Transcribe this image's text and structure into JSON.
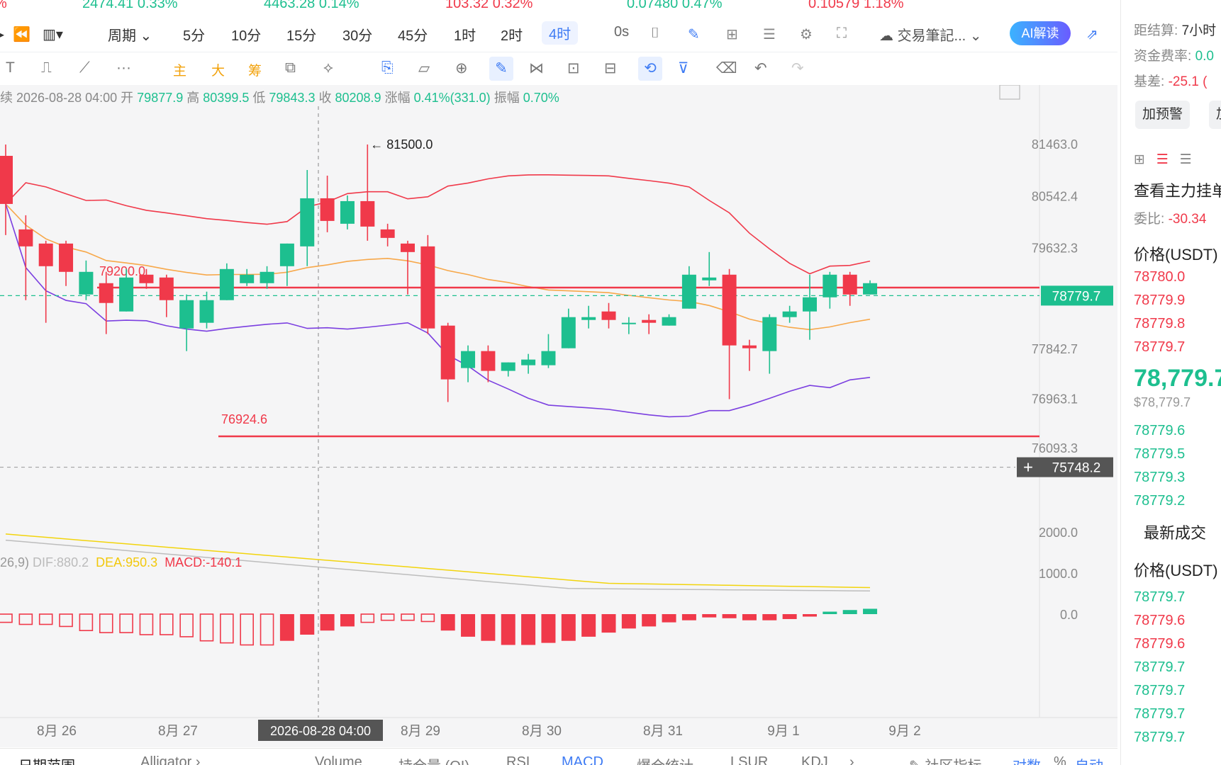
{
  "ticker": [
    {
      "price": "2474.41",
      "change": "0.33%",
      "dir": "up"
    },
    {
      "price": "4463.28",
      "change": "0.14%",
      "dir": "up"
    },
    {
      "price": "103.32",
      "change": "0.32%",
      "dir": "down"
    },
    {
      "price": "0.07480",
      "change": "0.47%",
      "dir": "up"
    },
    {
      "price": "0.10579",
      "change": "1.18%",
      "dir": "down"
    }
  ],
  "toolbar": {
    "period_label": "周期",
    "intervals": [
      "5分",
      "10分",
      "15分",
      "30分",
      "45分",
      "1时",
      "2时",
      "4时"
    ],
    "active_interval": "4时",
    "timer": "0s",
    "notes_label": "交易筆記...",
    "ai_label": "AI解读"
  },
  "toolbar2": {
    "main_label": "主",
    "big_label": "大",
    "chip_label": "筹"
  },
  "ohlc": {
    "prefix": "续",
    "date": "2026-08-28 04:00",
    "open_label": "开",
    "open": "79877.9",
    "high_label": "高",
    "high": "80399.5",
    "low_label": "低",
    "low": "79843.3",
    "close_label": "收",
    "close": "80208.9",
    "change_label": "涨幅",
    "change": "0.41%(331.0)",
    "amp_label": "振幅",
    "amp": "0.70%"
  },
  "chart_data": {
    "type": "candlestick",
    "price_axis": [
      "81463.0",
      "80542.4",
      "79632.3",
      "78779.7",
      "77842.7",
      "76963.1",
      "76093.3"
    ],
    "current_price": "78779.7",
    "crosshair_price": "75748.2",
    "max_annotation": "81500.0",
    "resistance": "79200.0",
    "support": "76924.6",
    "macd_axis": [
      "2000.0",
      "1000.0",
      "0.0"
    ],
    "x_labels": [
      "8月 26",
      "8月 27",
      "8月 29",
      "8月 30",
      "8月 31",
      "9月 1",
      "9月 2"
    ],
    "crosshair_time": "2026-08-28 04:00",
    "candles": [
      [
        81250,
        80400,
        81450,
        79850
      ],
      [
        79950,
        79650,
        80200,
        78700
      ],
      [
        79700,
        79300,
        79750,
        78300
      ],
      [
        79700,
        79200,
        79750,
        78950
      ],
      [
        78800,
        79200,
        79400,
        78700
      ],
      [
        79000,
        78650,
        79200,
        78100
      ],
      [
        78500,
        79100,
        79250,
        78500
      ],
      [
        79150,
        79000,
        79250,
        78900
      ],
      [
        79100,
        78700,
        79150,
        78400
      ],
      [
        78200,
        78700,
        78800,
        77800
      ],
      [
        78300,
        78700,
        78850,
        78200
      ],
      [
        78700,
        79250,
        79350,
        78700
      ],
      [
        79000,
        79150,
        79250,
        78950
      ],
      [
        79000,
        79200,
        79300,
        78900
      ],
      [
        79300,
        79700,
        79700,
        78950
      ],
      [
        79650,
        80500,
        81000,
        79300
      ],
      [
        80500,
        80100,
        80900,
        79900
      ],
      [
        80050,
        80450,
        80550,
        79950
      ],
      [
        80450,
        80000,
        81450,
        79750
      ],
      [
        79950,
        79800,
        80050,
        79650
      ],
      [
        79700,
        79550,
        79750,
        78800
      ],
      [
        79650,
        78200,
        79850,
        78100
      ],
      [
        78250,
        77300,
        78300,
        76900
      ],
      [
        77500,
        77800,
        77900,
        77250
      ],
      [
        77800,
        77450,
        77900,
        77250
      ],
      [
        77450,
        77600,
        77600,
        77350
      ],
      [
        77550,
        77650,
        77750,
        77400
      ],
      [
        77550,
        77800,
        78100,
        77500
      ],
      [
        77850,
        78400,
        78550,
        77850
      ],
      [
        78350,
        78400,
        78600,
        78200
      ],
      [
        78500,
        78350,
        78650,
        78200
      ],
      [
        78300,
        78300,
        78400,
        78100
      ],
      [
        78350,
        78300,
        78450,
        78100
      ],
      [
        78250,
        78400,
        78450,
        78250
      ],
      [
        78550,
        79150,
        79300,
        78550
      ],
      [
        79050,
        79100,
        79550,
        78950
      ],
      [
        79150,
        77900,
        79250,
        76950
      ],
      [
        77900,
        77850,
        78000,
        77450
      ],
      [
        77800,
        78400,
        78450,
        77400
      ],
      [
        78400,
        78500,
        78600,
        78300
      ],
      [
        78500,
        78750,
        79150,
        78000
      ],
      [
        78750,
        79150,
        79200,
        78550
      ],
      [
        79150,
        78800,
        79200,
        78600
      ],
      [
        78800,
        79000,
        79050,
        78800
      ]
    ],
    "macd_legend": {
      "params": "26,9)",
      "dif_label": "DIF:",
      "dif": "880.2",
      "dea_label": "DEA:",
      "dea": "950.3",
      "macd_label": "MACD:",
      "macd": "-140.1"
    },
    "macd_hist": [
      -200,
      -250,
      -250,
      -300,
      -400,
      -450,
      -450,
      -500,
      -500,
      -550,
      -650,
      -700,
      -750,
      -750,
      -650,
      -500,
      -400,
      -300,
      -200,
      -150,
      -150,
      -180,
      -400,
      -550,
      -650,
      -750,
      -750,
      -700,
      -650,
      -550,
      -450,
      -350,
      -300,
      -200,
      -150,
      -80,
      -100,
      -150,
      -150,
      -120,
      -60,
      60,
      100,
      130
    ]
  },
  "bottom_tabs": {
    "date_range": "日期范围",
    "alligator": "Alligator",
    "tabs": [
      "Volume",
      "持仓量 (OI)",
      "RSI",
      "MACD",
      "爆仓统计",
      "LSUR",
      "KDJ"
    ],
    "active_tab": "MACD",
    "community": "社区指标",
    "log": "对数",
    "percent": "%",
    "auto": "自动"
  },
  "right_panel": {
    "settle_label": "距结算:",
    "settle_val": "7小时",
    "funding_label": "资金费率:",
    "funding_val": "0.0",
    "basis_label": "基差:",
    "basis_val": "-25.1 (",
    "alert_btn": "加预警",
    "alert_btn2": "加",
    "main_orders": "查看主力挂单",
    "ratio_label": "委比:",
    "ratio_val": "-30.34",
    "price_header": "价格(USDT)",
    "asks": [
      "78780.0",
      "78779.9",
      "78779.8",
      "78779.7"
    ],
    "last_price": "78,779.7",
    "last_price_usd": "$78,779.7",
    "bids": [
      "78779.6",
      "78779.5",
      "78779.3",
      "78779.2"
    ],
    "trades_title": "最新成交",
    "trades_header": "价格(USDT)",
    "trades": [
      {
        "p": "78779.7",
        "d": "up"
      },
      {
        "p": "78779.6",
        "d": "down"
      },
      {
        "p": "78779.6",
        "d": "down"
      },
      {
        "p": "78779.7",
        "d": "up"
      },
      {
        "p": "78779.7",
        "d": "up"
      },
      {
        "p": "78779.7",
        "d": "up"
      },
      {
        "p": "78779.7",
        "d": "up"
      }
    ]
  }
}
